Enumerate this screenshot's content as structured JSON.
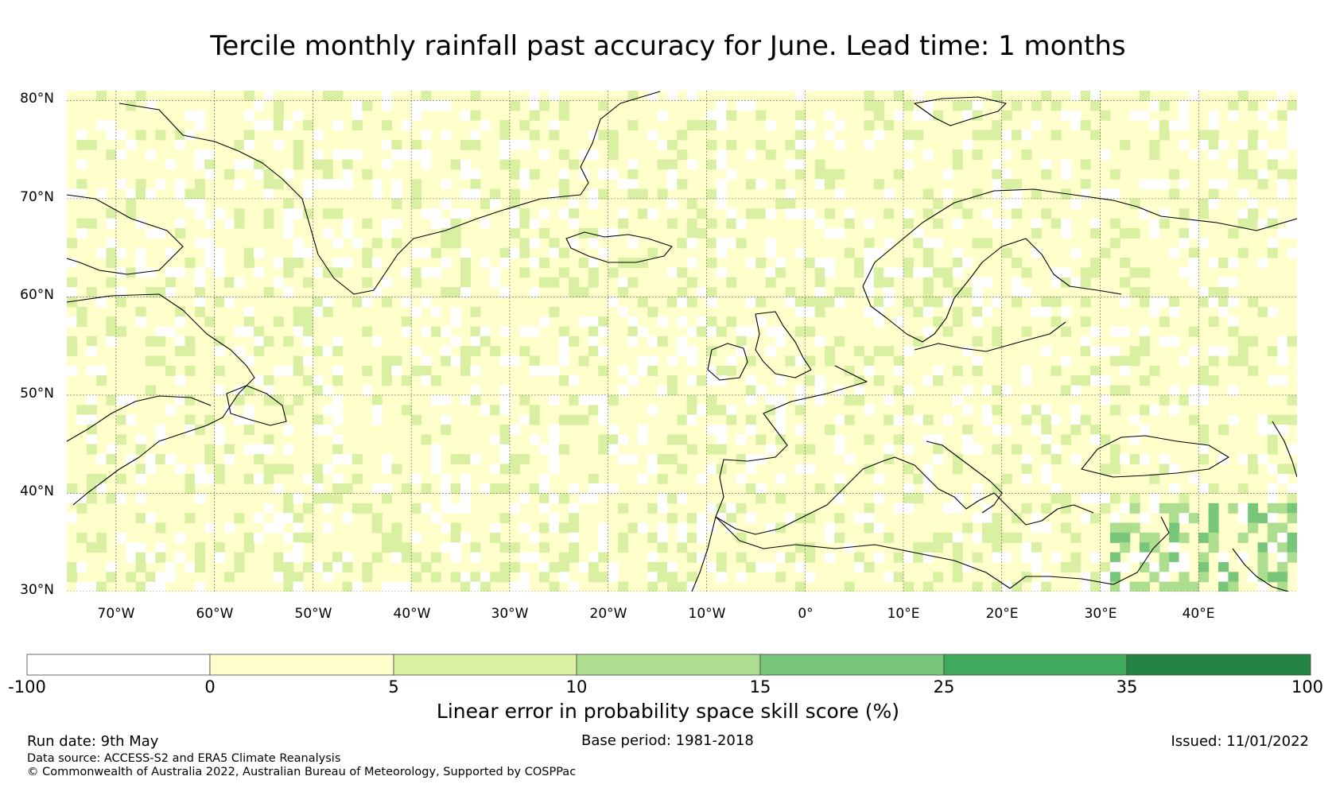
{
  "title": "Tercile monthly rainfall past accuracy for June. Lead time: 1 months",
  "map": {
    "lon_range": [
      -75,
      50
    ],
    "lat_range": [
      30,
      81
    ],
    "lat_ticks": [
      "80°N",
      "70°N",
      "60°N",
      "50°N",
      "40°N",
      "30°N"
    ],
    "lon_ticks": [
      "70°W",
      "60°W",
      "50°W",
      "40°W",
      "30°W",
      "20°W",
      "10°W",
      "0°",
      "10°E",
      "20°E",
      "30°E",
      "40°E"
    ],
    "gridlines": true,
    "background_color": "#ffffcc"
  },
  "colorbar": {
    "label": "Linear error in probability space skill score (%)",
    "ticks": [
      "-100",
      "0",
      "5",
      "10",
      "15",
      "25",
      "35",
      "100"
    ],
    "colors": [
      "#ffffff",
      "#ffffcc",
      "#d9f0a3",
      "#addd8e",
      "#78c679",
      "#41ab5d",
      "#238443"
    ]
  },
  "footer": {
    "run_date": "Run date: 9th May",
    "base_period": "Base period: 1981-2018",
    "issued": "Issued: 11/01/2022",
    "data_source": "Data source: ACCESS-S2 and ERA5 Climate Reanalysis",
    "copyright": "© Commonwealth of Australia 2022, Australian Bureau of Meteorology, Supported by COSPPac"
  }
}
